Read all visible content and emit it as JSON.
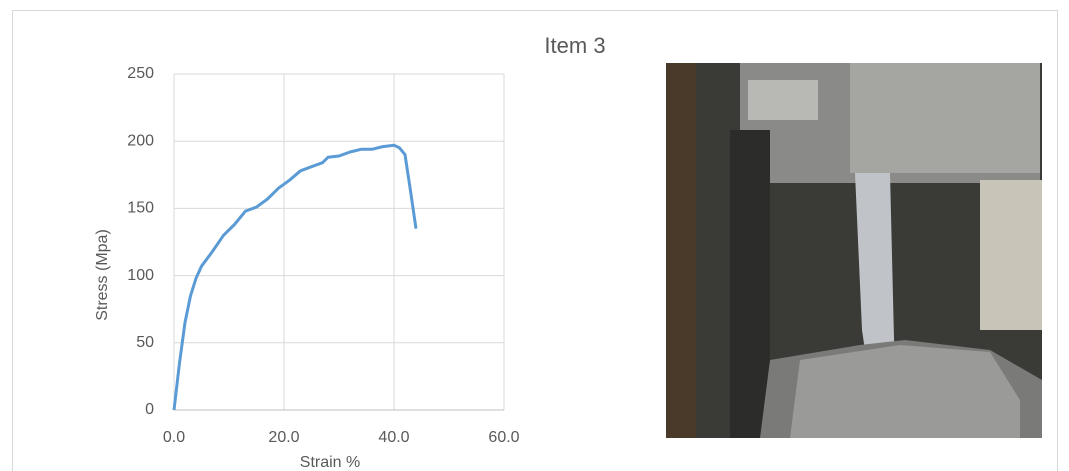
{
  "chart_data": {
    "type": "line",
    "title": "Item 3",
    "x_label": "Strain %",
    "y_label": "Stress (Mpa)",
    "x": [
      0,
      1,
      2,
      3,
      4,
      5,
      7,
      9,
      11,
      13,
      15,
      17,
      19,
      21,
      23,
      25,
      27,
      28,
      30,
      32,
      34,
      36,
      38,
      40,
      41,
      42,
      43,
      44
    ],
    "values": [
      0,
      35,
      65,
      85,
      98,
      107,
      118,
      130,
      138,
      148,
      151,
      157,
      165,
      171,
      178,
      181,
      184,
      188,
      189,
      192,
      194,
      194,
      196,
      197,
      195,
      190,
      163,
      135
    ],
    "color": "#5b9bd5",
    "xlim": [
      0,
      60
    ],
    "xticks": [
      {
        "value": 0,
        "label": "0.0"
      },
      {
        "value": 20,
        "label": "20.0"
      },
      {
        "value": 40,
        "label": "40.0"
      },
      {
        "value": 60,
        "label": "60.0"
      }
    ],
    "ylim": [
      0,
      250
    ],
    "yticks": [
      0,
      50,
      100,
      150,
      200,
      250
    ],
    "grid": true
  }
}
